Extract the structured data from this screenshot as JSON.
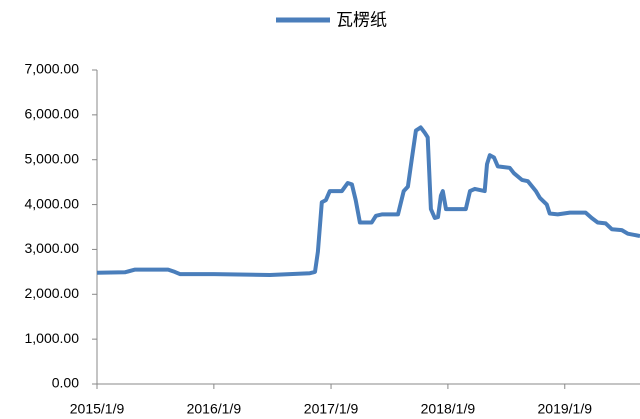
{
  "chart_data": {
    "type": "line",
    "series": [
      {
        "name": "瓦楞纸",
        "color": "#4a7ebb",
        "x": [
          "2015/1/9",
          "2015/4/6",
          "2015/5/8",
          "2015/8/19",
          "2015/9/9",
          "2015/9/25",
          "2016/1/9",
          "2016/7/2",
          "2016/11/4",
          "2016/11/20",
          "2016/11/29",
          "2016/12/11",
          "2016/12/24",
          "2017/1/5",
          "2017/2/12",
          "2017/3/2",
          "2017/3/15",
          "2017/3/27",
          "2017/4/9",
          "2017/5/16",
          "2017/5/29",
          "2017/6/17",
          "2017/8/6",
          "2017/8/24",
          "2017/9/6",
          "2017/9/18",
          "2017/10/1",
          "2017/10/16",
          "2017/10/29",
          "2017/11/7",
          "2017/11/17",
          "2017/11/29",
          "2017/12/9",
          "2017/12/18",
          "2017/12/24",
          "2018/1/3",
          "2018/3/6",
          "2018/3/19",
          "2018/4/3",
          "2018/5/4",
          "2018/5/11",
          "2018/5/20",
          "2018/6/2",
          "2018/6/14",
          "2018/7/21",
          "2018/8/3",
          "2018/8/28",
          "2018/9/16",
          "2018/10/11",
          "2018/10/23",
          "2018/11/14",
          "2018/11/23",
          "2018/12/18",
          "2019/1/25",
          "2019/3/15",
          "2019/4/3",
          "2019/4/22",
          "2019/5/17",
          "2019/6/5",
          "2019/7/6",
          "2019/7/25",
          "2019/9/1"
        ],
        "values": [
          2480,
          2490,
          2550,
          2550,
          2500,
          2450,
          2450,
          2430,
          2470,
          2500,
          2950,
          4050,
          4100,
          4300,
          4300,
          4480,
          4450,
          4100,
          3600,
          3600,
          3750,
          3780,
          3780,
          4300,
          4400,
          5000,
          5650,
          5720,
          5600,
          5500,
          3900,
          3700,
          3720,
          4200,
          4300,
          3900,
          3900,
          4300,
          4350,
          4300,
          4900,
          5100,
          5050,
          4850,
          4820,
          4700,
          4550,
          4520,
          4300,
          4150,
          4000,
          3800,
          3780,
          3820,
          3820,
          3700,
          3600,
          3580,
          3450,
          3430,
          3350,
          3300
        ]
      }
    ],
    "xlim": [
      "2015/1/9",
      "2019/9/1"
    ],
    "xticks": [
      "2015/1/9",
      "2016/1/9",
      "2017/1/9",
      "2018/1/9",
      "2019/1/9"
    ],
    "ylim": [
      0,
      7000
    ],
    "yticks": [
      {
        "value": 0,
        "label": "0.00"
      },
      {
        "value": 1000,
        "label": "1,000.00"
      },
      {
        "value": 2000,
        "label": "2,000.00"
      },
      {
        "value": 3000,
        "label": "3,000.00"
      },
      {
        "value": 4000,
        "label": "4,000.00"
      },
      {
        "value": 5000,
        "label": "5,000.00"
      },
      {
        "value": 6000,
        "label": "6,000.00"
      },
      {
        "value": 7000,
        "label": "7,000.00"
      }
    ],
    "legend": "top"
  }
}
